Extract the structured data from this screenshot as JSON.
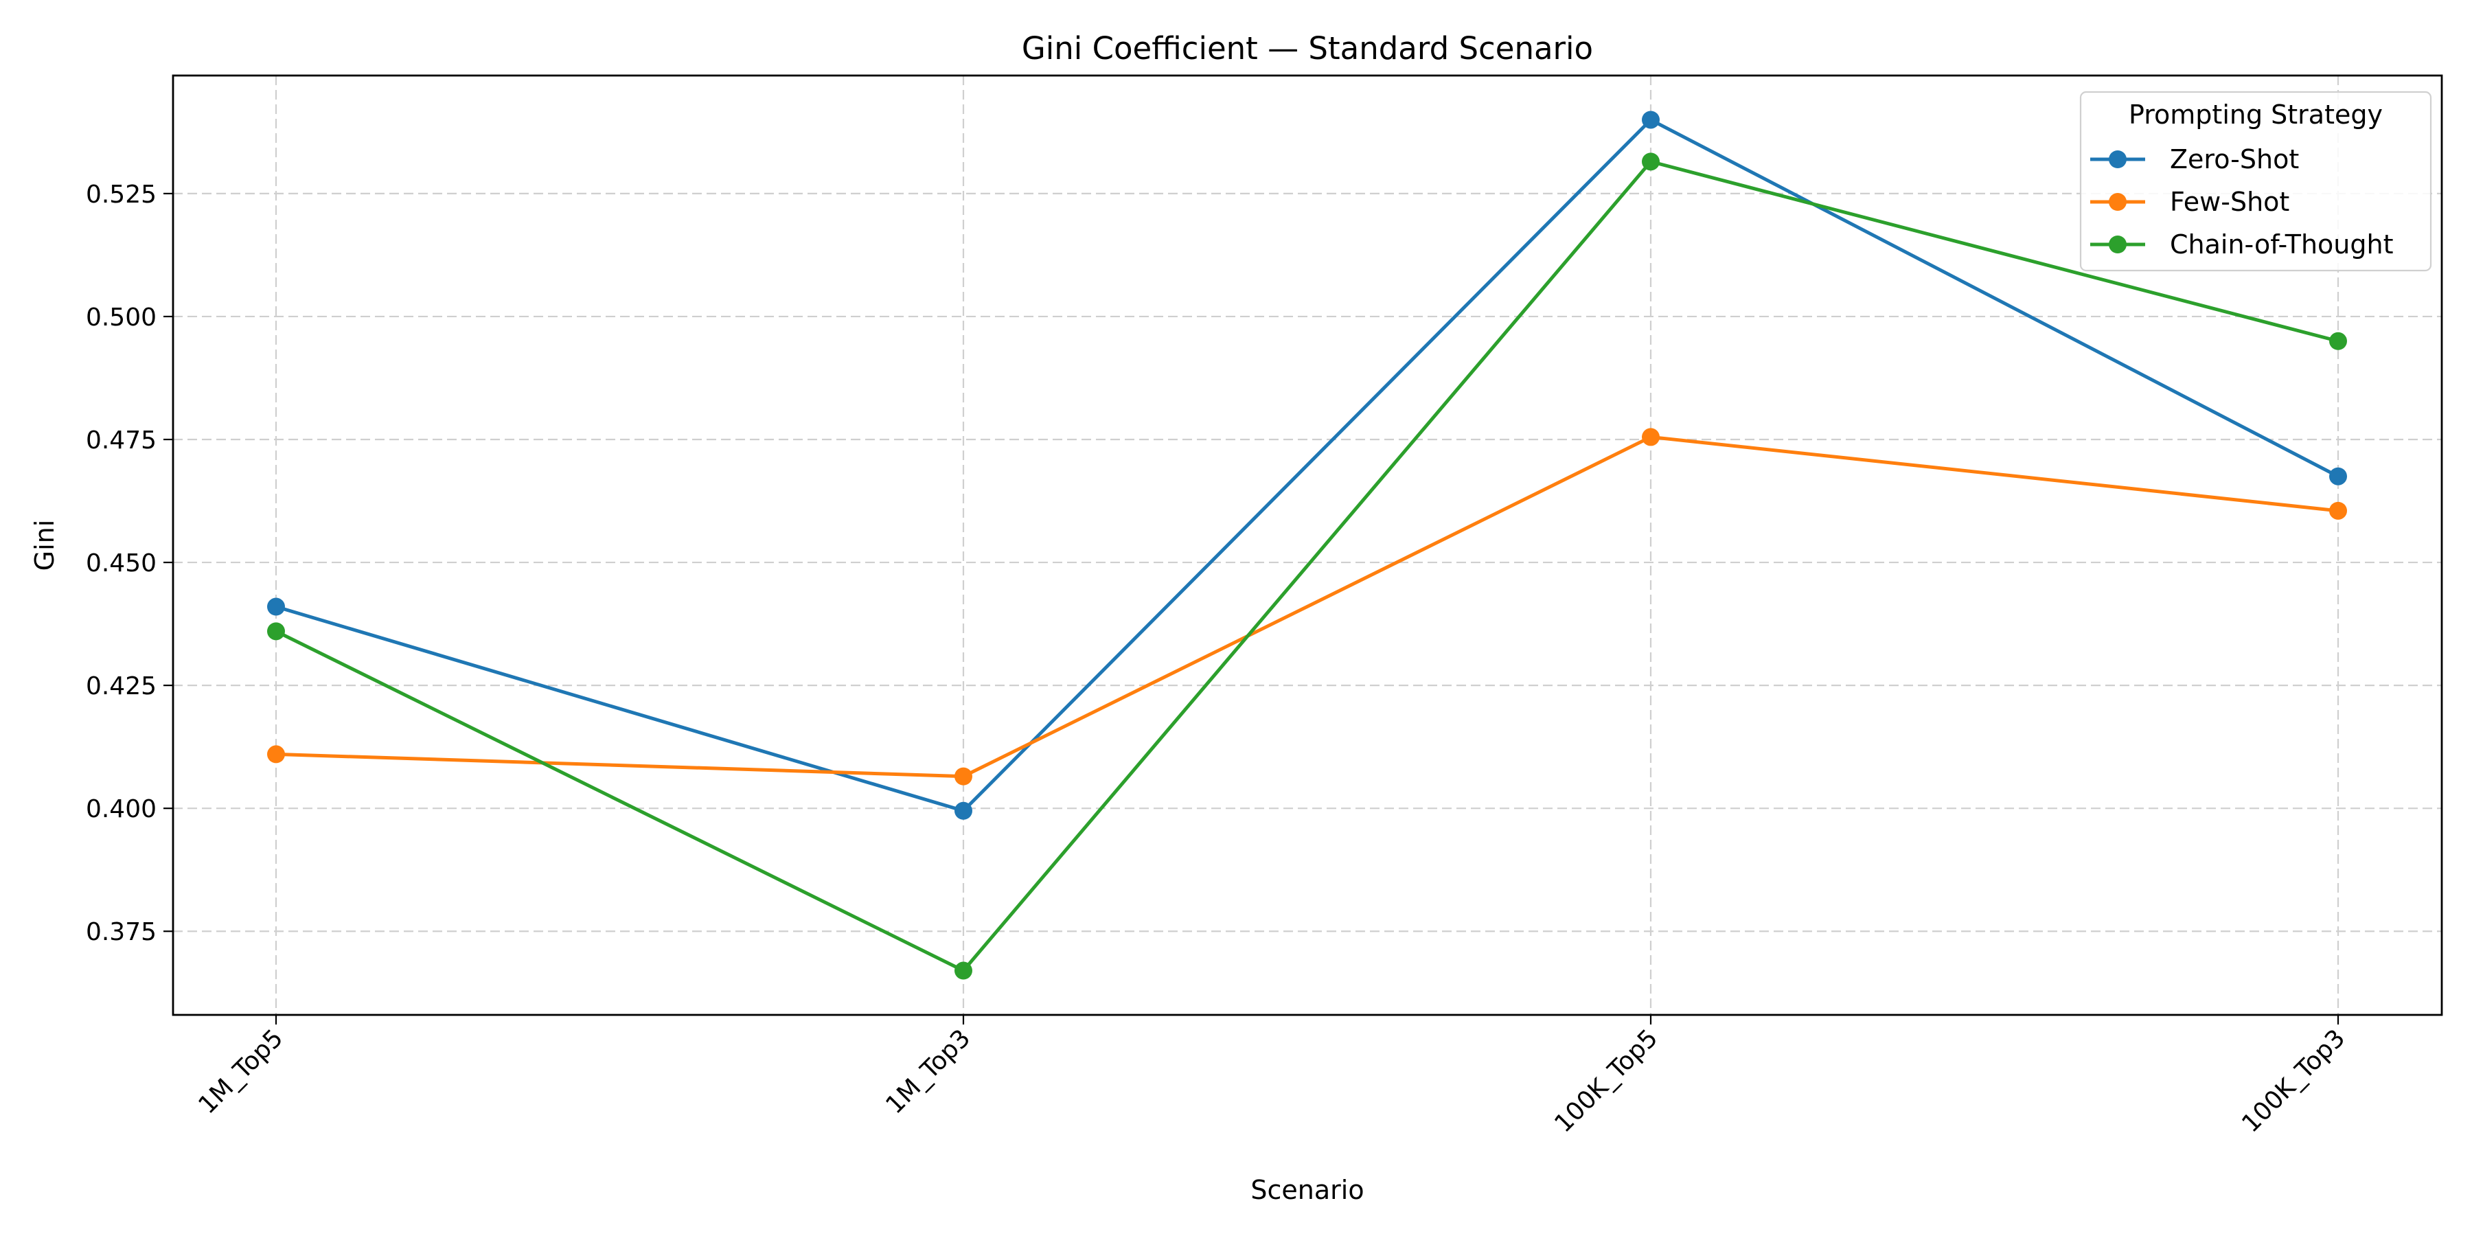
{
  "chart_data": {
    "type": "line",
    "title": "Gini Coefficient — Standard Scenario",
    "xlabel": "Scenario",
    "ylabel": "Gini",
    "categories": [
      "1M_Top5",
      "1M_Top3",
      "100K_Top5",
      "100K_Top3"
    ],
    "ylim": [
      0.358,
      0.549
    ],
    "yticks": [
      0.375,
      0.4,
      0.425,
      0.45,
      0.475,
      0.5,
      0.525
    ],
    "ytick_labels": [
      "0.375",
      "0.400",
      "0.425",
      "0.450",
      "0.475",
      "0.500",
      "0.525"
    ],
    "grid": true,
    "legend": {
      "title": "Prompting Strategy",
      "placement": "top-right"
    },
    "series": [
      {
        "name": "Zero-Shot",
        "color": "#1f77b4",
        "values": [
          0.441,
          0.3995,
          0.54,
          0.4675
        ]
      },
      {
        "name": "Few-Shot",
        "color": "#ff7f0e",
        "values": [
          0.411,
          0.4065,
          0.4755,
          0.4605
        ]
      },
      {
        "name": "Chain-of-Thought",
        "color": "#2ca02c",
        "values": [
          0.436,
          0.367,
          0.5315,
          0.495
        ]
      }
    ]
  }
}
